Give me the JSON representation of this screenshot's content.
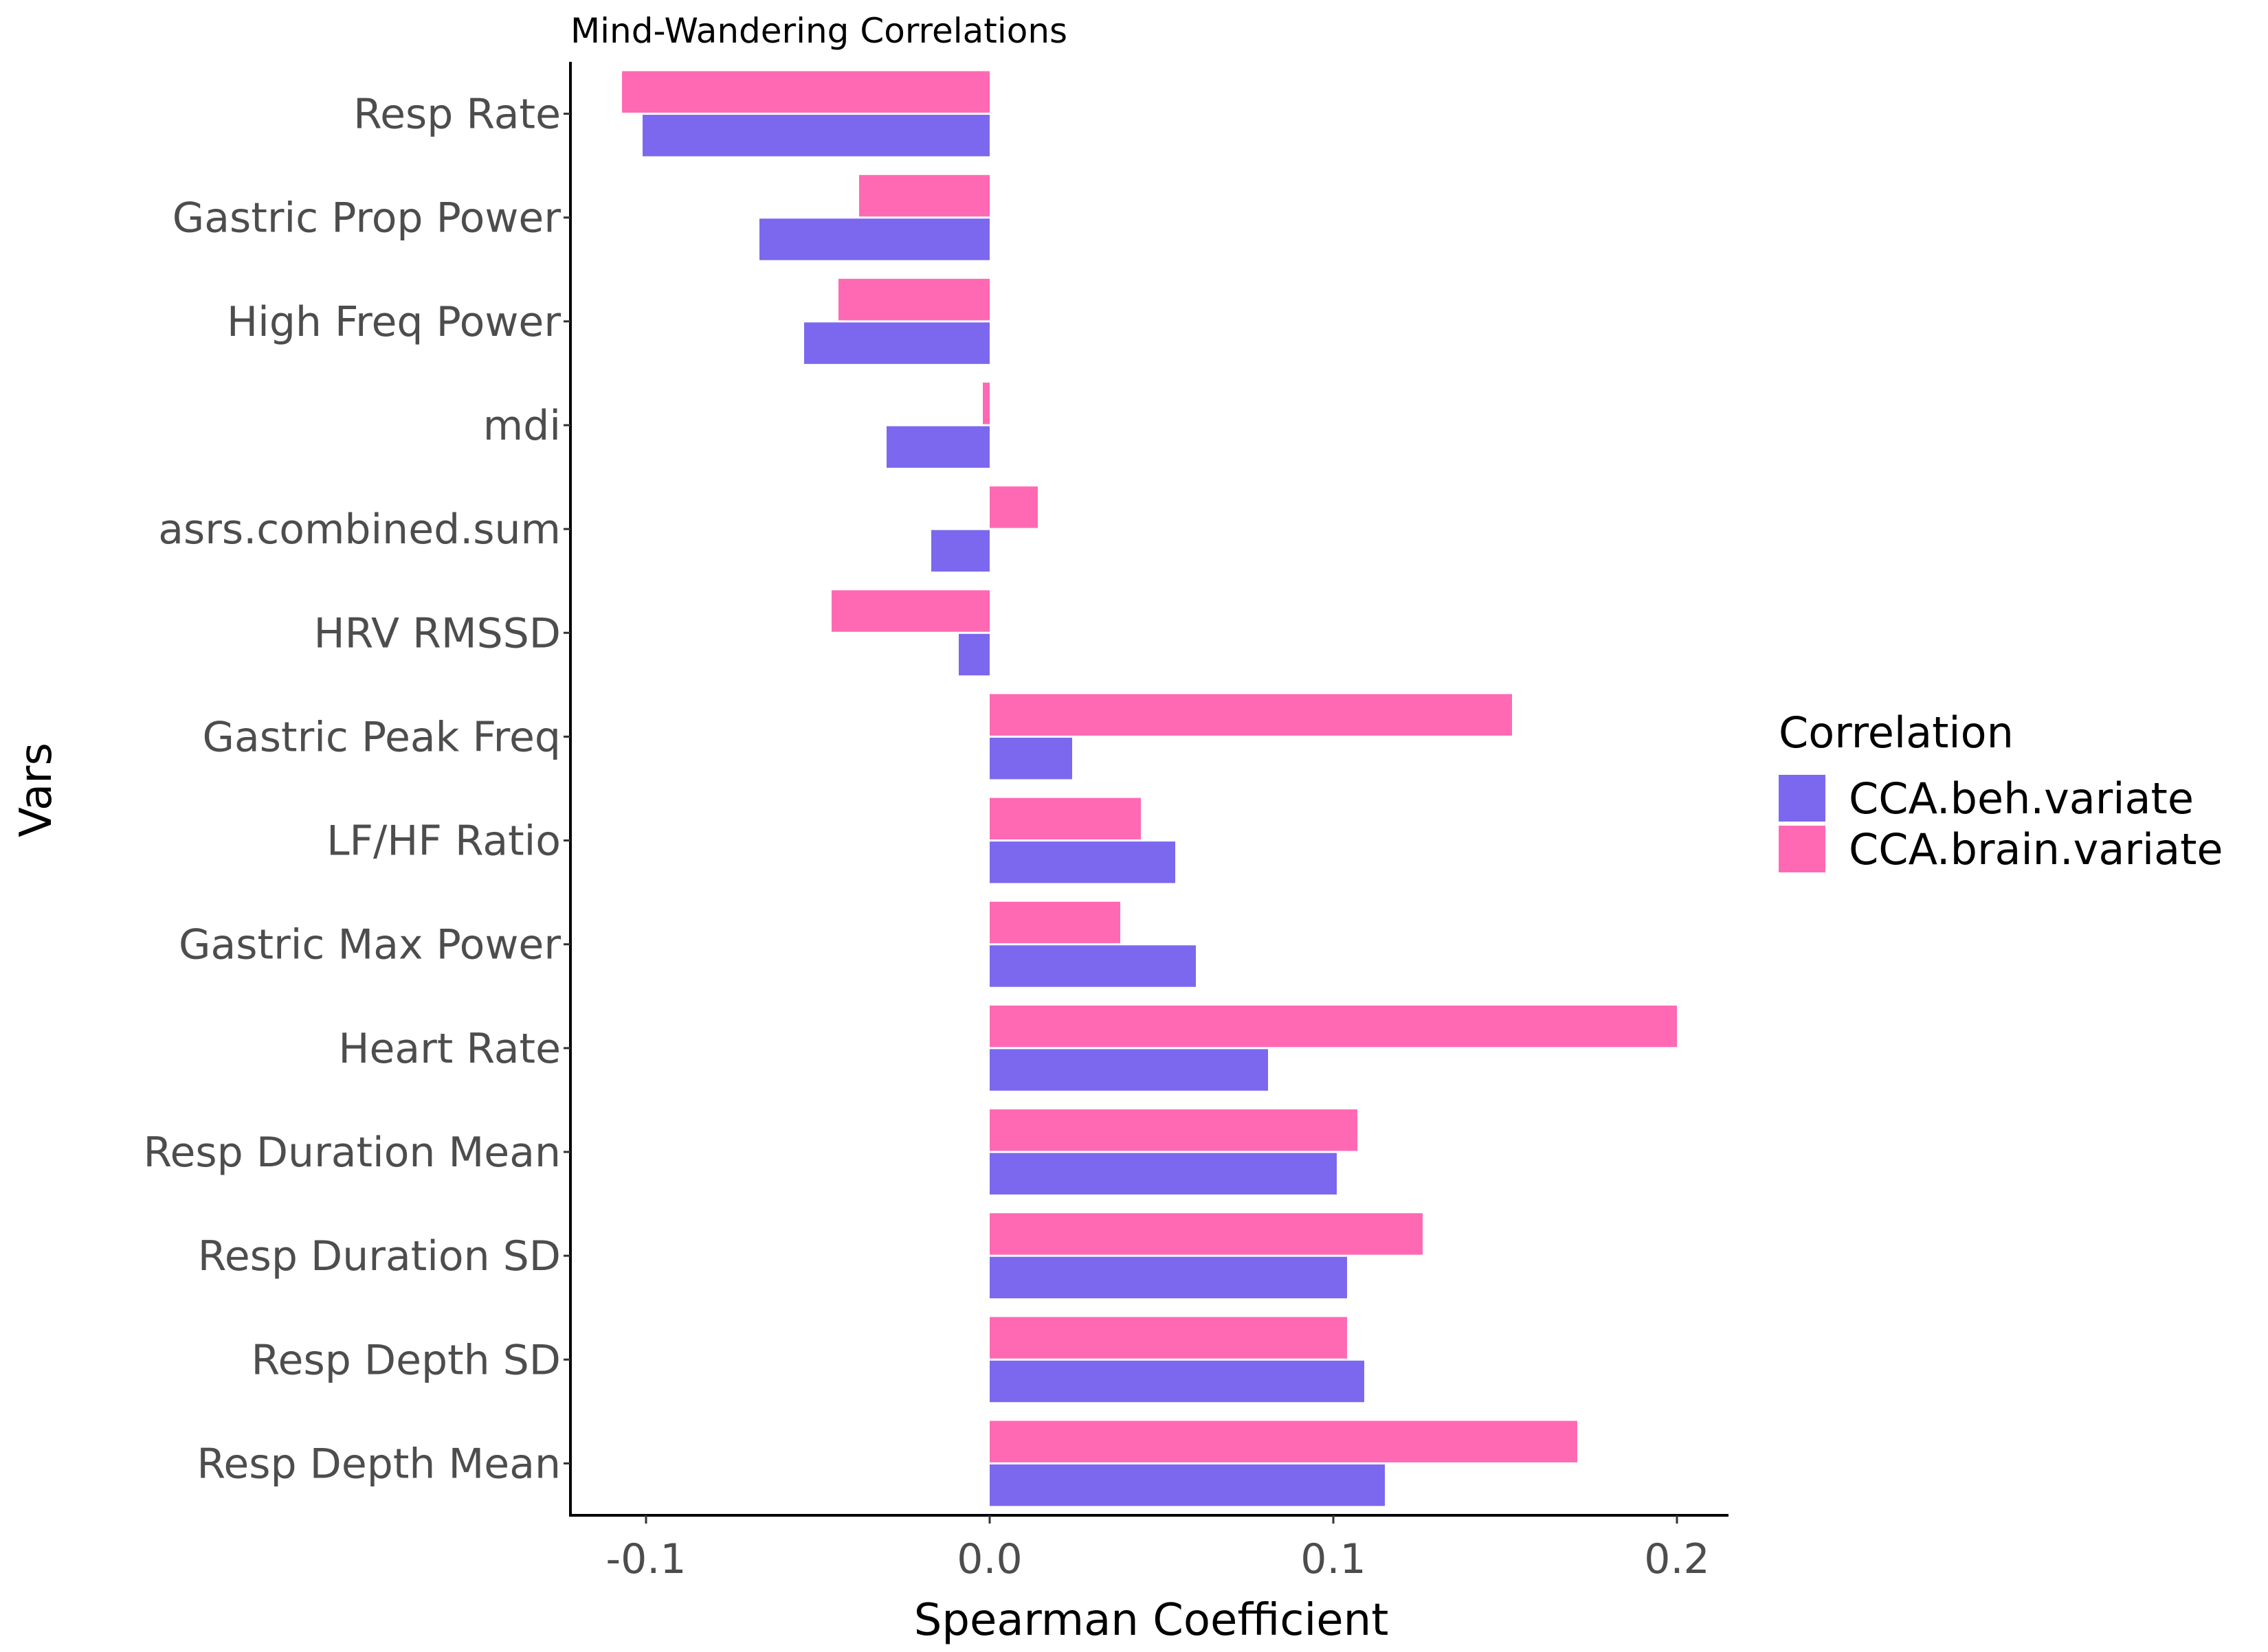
{
  "chart_data": {
    "type": "bar",
    "orientation": "horizontal",
    "title": "Mind-Wandering Correlations",
    "xlabel": "Spearman Coefficient",
    "ylabel": "Vars",
    "xlim": [
      -0.122,
      0.215
    ],
    "x_ticks": [
      -0.1,
      0.0,
      0.1,
      0.2
    ],
    "x_tick_labels": [
      "-0.1",
      "0.0",
      "0.1",
      "0.2"
    ],
    "categories": [
      "Resp Rate",
      "Gastric Prop Power",
      "High Freq Power",
      "mdi",
      "asrs.combined.sum",
      "HRV RMSSD",
      "Gastric Peak Freq",
      "LF/HF Ratio",
      "Gastric Max Power",
      "Heart Rate",
      "Resp Duration Mean",
      "Resp Duration SD",
      "Resp Depth SD",
      "Resp Depth Mean"
    ],
    "series": [
      {
        "name": "CCA.beh.variate",
        "color": "#7B68EE",
        "values": [
          -0.101,
          -0.067,
          -0.054,
          -0.03,
          -0.017,
          -0.009,
          0.024,
          0.054,
          0.06,
          0.081,
          0.101,
          0.104,
          0.109,
          0.115
        ]
      },
      {
        "name": "CCA.brain.variate",
        "color": "#FF69B4",
        "values": [
          -0.107,
          -0.038,
          -0.044,
          -0.002,
          0.014,
          -0.046,
          0.152,
          0.044,
          0.038,
          0.2,
          0.107,
          0.126,
          0.104,
          0.171
        ]
      }
    ],
    "legend": {
      "title": "Correlation",
      "position": "right"
    },
    "grid": false
  }
}
